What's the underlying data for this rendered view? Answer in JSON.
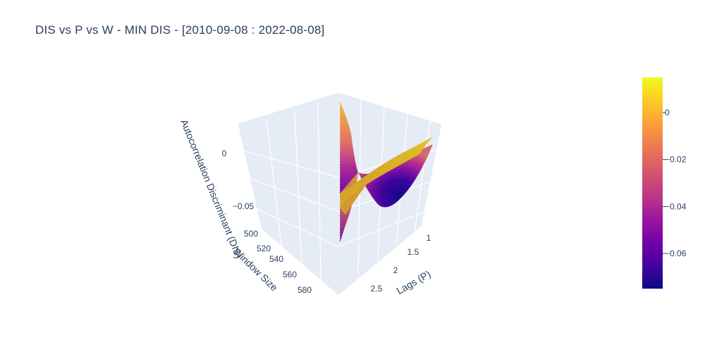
{
  "chart_data": {
    "type": "surface",
    "title": "DIS vs P vs W - MIN DIS - [2010-09-08 : 2022-08-08]",
    "x_axis": {
      "label": "Lags (P)",
      "ticks": [
        "1",
        "1.5",
        "2",
        "2.5"
      ]
    },
    "y_axis": {
      "label": "Window Size",
      "ticks": [
        "500",
        "520",
        "540",
        "560",
        "580"
      ]
    },
    "z_axis": {
      "label": "Autocorrelation Discriminant (DIS)",
      "ticks": [
        "0",
        "−0.05"
      ]
    },
    "colorbar": {
      "ticks": [
        "0",
        "−0.02",
        "−0.04",
        "−0.06"
      ],
      "tick_values": [
        0,
        -0.02,
        -0.04,
        -0.06
      ],
      "range": [
        -0.075,
        0.015
      ],
      "colorscale": [
        "#0d0887",
        "#46039f",
        "#7201a8",
        "#9c179e",
        "#bd3786",
        "#d8576b",
        "#ed7953",
        "#fb9f3a",
        "#fdca26",
        "#f0f921"
      ]
    },
    "surface_samples": {
      "window_size": [
        500,
        590
      ],
      "lags_p": [
        1,
        1.5,
        2,
        2.5
      ],
      "min_dis_approx": -0.074,
      "max_dis_approx": 0.015
    }
  }
}
